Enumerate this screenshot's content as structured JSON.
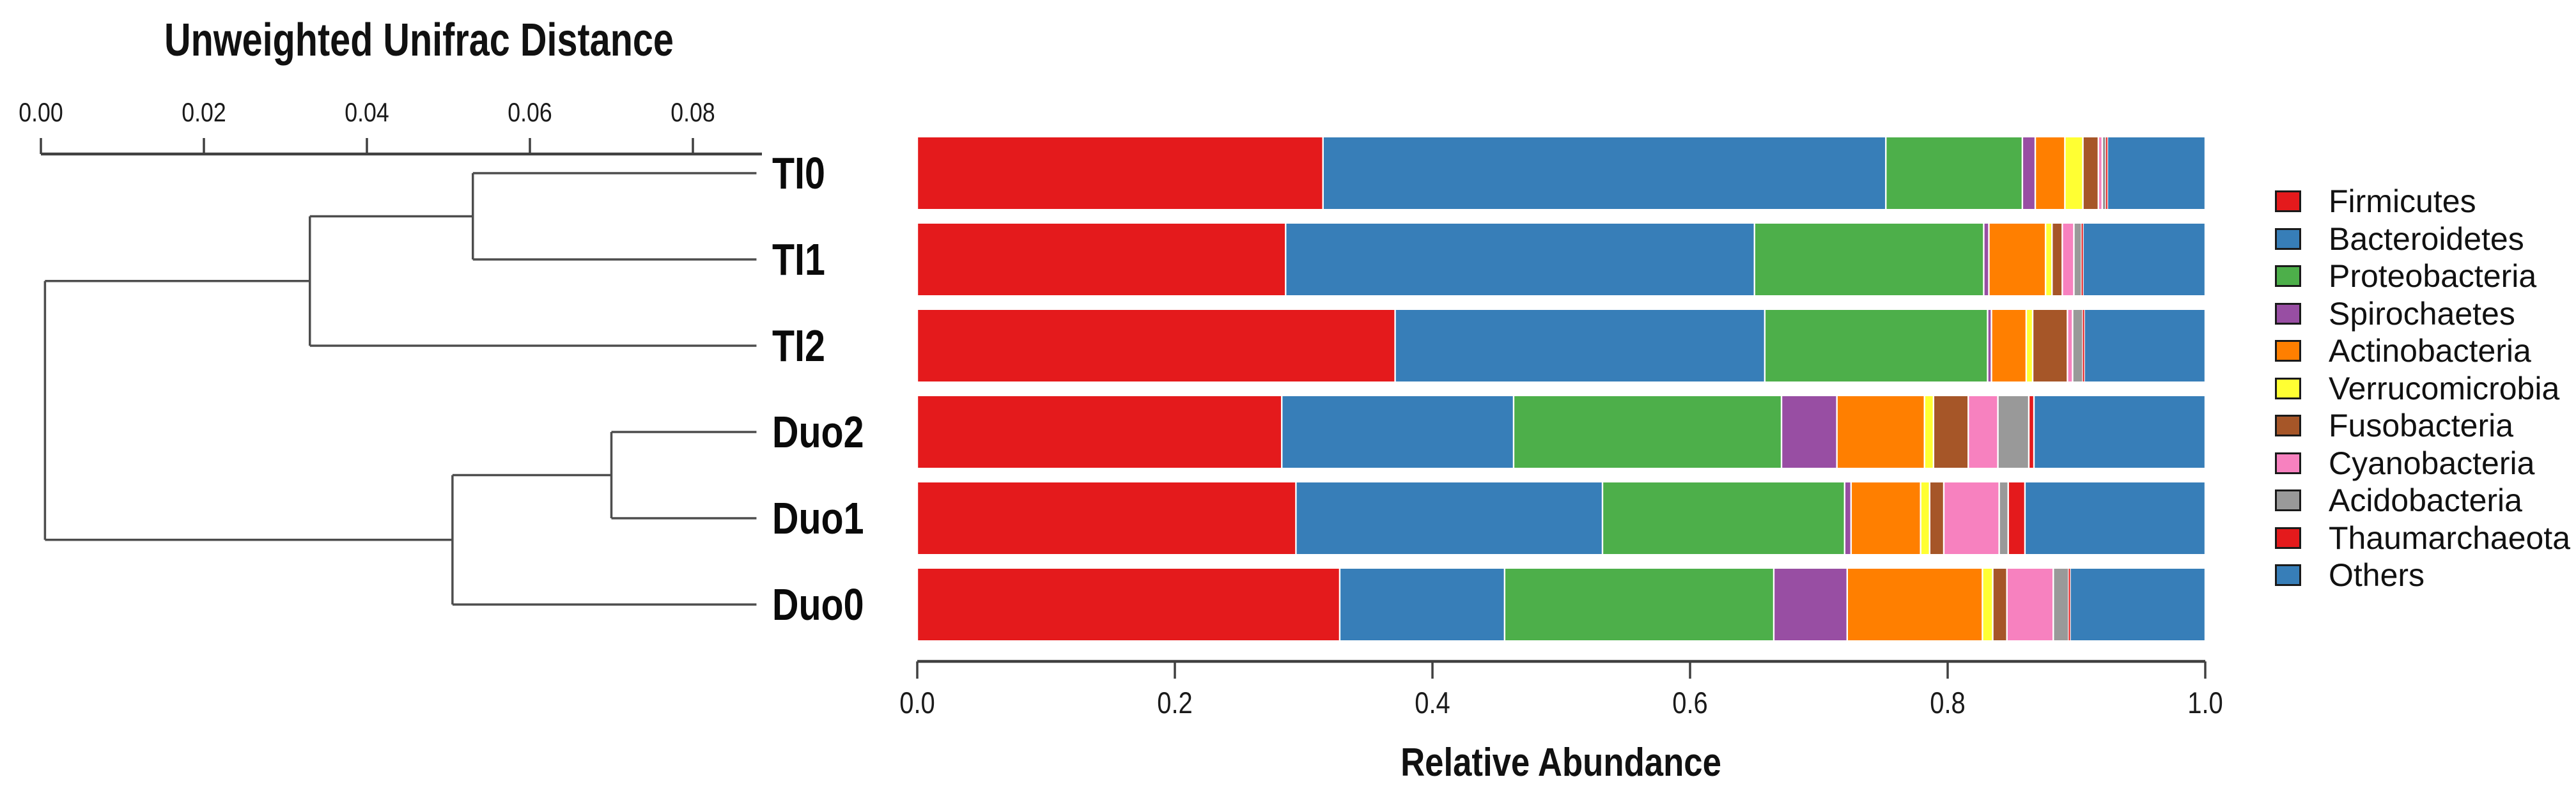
{
  "dendrogram": {
    "title": "Unweighted Unifrac Distance",
    "axis": {
      "ticks": [
        {
          "label": "0.00",
          "value": 0.0
        },
        {
          "label": "0.02",
          "value": 0.02
        },
        {
          "label": "0.04",
          "value": 0.04
        },
        {
          "label": "0.06",
          "value": 0.06
        },
        {
          "label": "0.08",
          "value": 0.08
        }
      ],
      "max_extent": 0.0885
    },
    "leaves": [
      "TI0",
      "TI1",
      "TI2",
      "Duo2",
      "Duo1",
      "Duo0"
    ],
    "joins": {
      "TI0-TI1": 0.053,
      "TI-cluster": 0.033,
      "Duo2-Duo1": 0.07,
      "Duo-cluster": 0.0505,
      "root": 0.0005
    },
    "leaf_tip": 0.0878
  },
  "chart_data": {
    "type": "bar",
    "orientation": "horizontal-stacked",
    "xlabel": "Relative Abundance",
    "xlim": [
      0.0,
      1.0
    ],
    "grid": false,
    "legend_position": "right",
    "xticks": [
      {
        "label": "0.0",
        "value": 0.0
      },
      {
        "label": "0.2",
        "value": 0.2
      },
      {
        "label": "0.4",
        "value": 0.4
      },
      {
        "label": "0.6",
        "value": 0.6
      },
      {
        "label": "0.8",
        "value": 0.8
      },
      {
        "label": "1.0",
        "value": 1.0
      }
    ],
    "categories": [
      "TI0",
      "TI1",
      "TI2",
      "Duo2",
      "Duo1",
      "Duo0"
    ],
    "series": [
      {
        "name": "Firmicutes",
        "color": "#E41A1C",
        "values": [
          0.315,
          0.286,
          0.371,
          0.283,
          0.294,
          0.328
        ]
      },
      {
        "name": "Bacteroidetes",
        "color": "#377EB8",
        "values": [
          0.437,
          0.364,
          0.287,
          0.18,
          0.238,
          0.128
        ]
      },
      {
        "name": "Proteobacteria",
        "color": "#4DAF4A",
        "values": [
          0.106,
          0.178,
          0.173,
          0.208,
          0.188,
          0.209
        ]
      },
      {
        "name": "Spirochaetes",
        "color": "#984EA3",
        "values": [
          0.01,
          0.004,
          0.003,
          0.043,
          0.005,
          0.057
        ]
      },
      {
        "name": "Actinobacteria",
        "color": "#FF7F00",
        "values": [
          0.023,
          0.044,
          0.027,
          0.068,
          0.054,
          0.105
        ]
      },
      {
        "name": "Verrucomicrobia",
        "color": "#FFFF33",
        "values": [
          0.014,
          0.005,
          0.005,
          0.007,
          0.007,
          0.008
        ]
      },
      {
        "name": "Fusobacteria",
        "color": "#A65628",
        "values": [
          0.012,
          0.008,
          0.027,
          0.027,
          0.011,
          0.011
        ]
      },
      {
        "name": "Cyanobacteria",
        "color": "#F781BF",
        "values": [
          0.003,
          0.009,
          0.004,
          0.023,
          0.043,
          0.036
        ]
      },
      {
        "name": "Acidobacteria",
        "color": "#999999",
        "values": [
          0.003,
          0.006,
          0.008,
          0.024,
          0.007,
          0.012
        ]
      },
      {
        "name": "Thaumarchaeota",
        "color": "#E41A1C",
        "values": [
          0.001,
          0.001,
          0.001,
          0.004,
          0.013,
          0.001
        ]
      },
      {
        "name": "Others",
        "color": "#377EB8",
        "values": [
          0.076,
          0.095,
          0.094,
          0.133,
          0.14,
          0.105
        ]
      }
    ]
  },
  "colors": {
    "axis_line": "#404040",
    "dendrogram_line": "#4d4d4d",
    "segment_gap": "#ffffff",
    "text": "#111111"
  }
}
